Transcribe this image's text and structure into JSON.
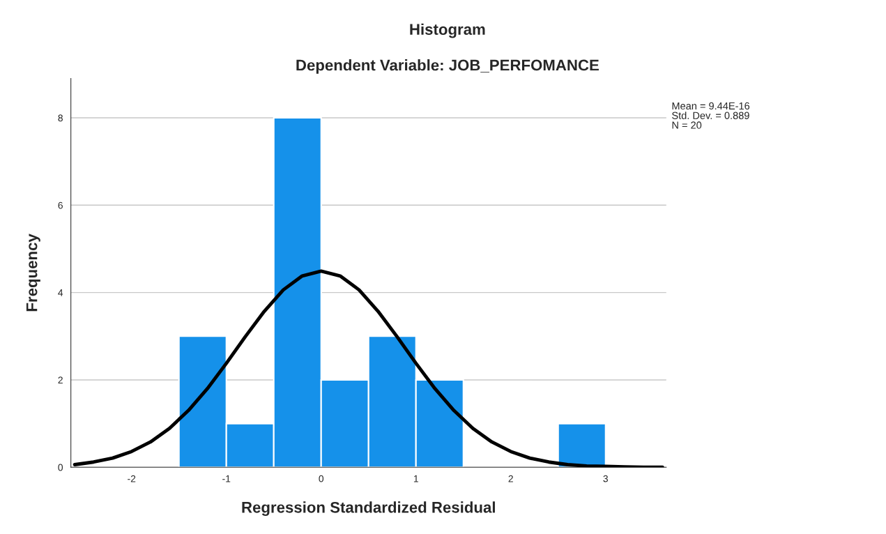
{
  "chart_data": {
    "type": "histogram",
    "title": "Histogram",
    "subtitle": "Dependent Variable: JOB_PERFOMANCE",
    "xlabel": "Regression Standardized Residual",
    "ylabel": "Frequency",
    "bins": [
      -1.5,
      -1.0,
      -0.5,
      0.0,
      0.5,
      1.0,
      1.5,
      2.0,
      2.5,
      3.0
    ],
    "values": [
      3,
      1,
      8,
      2,
      3,
      2,
      0,
      0,
      1
    ],
    "color": "#1591ea",
    "series": [
      {
        "type": "line",
        "color": "#000000",
        "x": [
          -2.6,
          -2.4,
          -2.2,
          -2.0,
          -1.8,
          -1.6,
          -1.4,
          -1.2,
          -1.0,
          -0.8,
          -0.6,
          -0.4,
          -0.2,
          0.0,
          0.2,
          0.4,
          0.6,
          0.8,
          1.0,
          1.2,
          1.4,
          1.6,
          1.8,
          2.0,
          2.2,
          2.4,
          2.6,
          2.8,
          3.0,
          3.2,
          3.4,
          3.6
        ],
        "values": [
          0.06,
          0.12,
          0.21,
          0.36,
          0.58,
          0.89,
          1.3,
          1.8,
          2.38,
          2.99,
          3.57,
          4.06,
          4.38,
          4.49,
          4.38,
          4.06,
          3.57,
          2.99,
          2.38,
          1.8,
          1.3,
          0.89,
          0.58,
          0.36,
          0.21,
          0.12,
          0.06,
          0.03,
          0.02,
          0.01,
          0.0,
          0.0
        ]
      }
    ],
    "xlim": [
      -2.64,
      3.64
    ],
    "ylim": [
      0,
      8.9
    ],
    "xticks": [
      -2,
      -1,
      0,
      1,
      2,
      3
    ],
    "yticks": [
      0,
      2,
      4,
      6,
      8
    ],
    "grid": "y",
    "legend": false,
    "annotations": [
      "Mean = 9.44E-16",
      "Std. Dev. = 0.889",
      "N = 20"
    ]
  }
}
